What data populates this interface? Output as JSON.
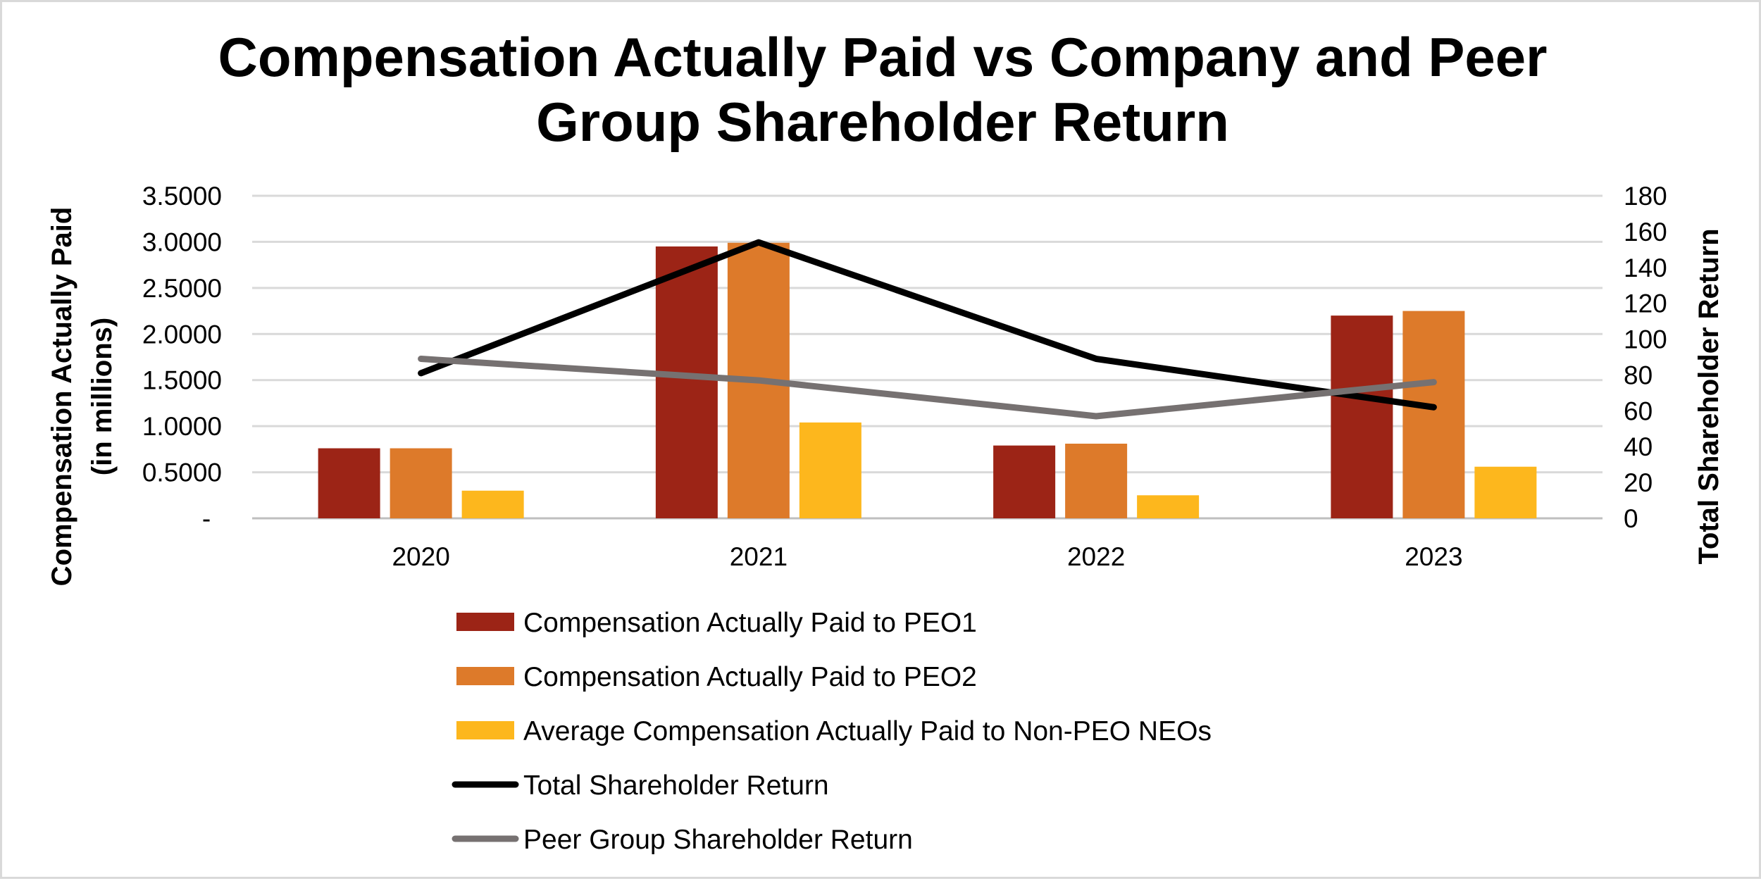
{
  "chart_data": {
    "type": "bar",
    "title_lines": [
      "Compensation Actually Paid vs Company and Peer",
      "Group Shareholder Return"
    ],
    "ylabel_lines": [
      "Compensation Actually Paid",
      "(in millions)"
    ],
    "y2label": "Total Shareholder Return",
    "categories": [
      "2020",
      "2021",
      "2022",
      "2023"
    ],
    "ylim": [
      0,
      3.5
    ],
    "y_ticks": [
      "-",
      "0.5000",
      "1.0000",
      "1.5000",
      "2.0000",
      "2.5000",
      "3.0000",
      "3.5000"
    ],
    "y2lim": [
      0,
      180
    ],
    "y2_ticks": [
      "0",
      "20",
      "40",
      "60",
      "80",
      "100",
      "120",
      "140",
      "160",
      "180"
    ],
    "grid": true,
    "legend_position": "bottom",
    "series": [
      {
        "name": "Compensation Actually Paid to PEO1",
        "kind": "bar",
        "axis": "left",
        "color": "#9c2416",
        "values": [
          0.76,
          2.95,
          0.79,
          2.2
        ]
      },
      {
        "name": "Compensation Actually Paid to PEO2",
        "kind": "bar",
        "axis": "left",
        "color": "#dd7a2a",
        "values": [
          0.76,
          2.99,
          0.81,
          2.25
        ]
      },
      {
        "name": "Average Compensation Actually Paid to Non-PEO NEOs",
        "kind": "bar",
        "axis": "left",
        "color": "#fdb71d",
        "values": [
          0.3,
          1.04,
          0.25,
          0.56
        ]
      },
      {
        "name": "Total Shareholder Return",
        "kind": "line",
        "axis": "right",
        "color": "#000000",
        "values": [
          81,
          154,
          89,
          62
        ]
      },
      {
        "name": "Peer Group Shareholder Return",
        "kind": "line",
        "axis": "right",
        "color": "#767171",
        "values": [
          89,
          77,
          57,
          76
        ]
      }
    ]
  }
}
